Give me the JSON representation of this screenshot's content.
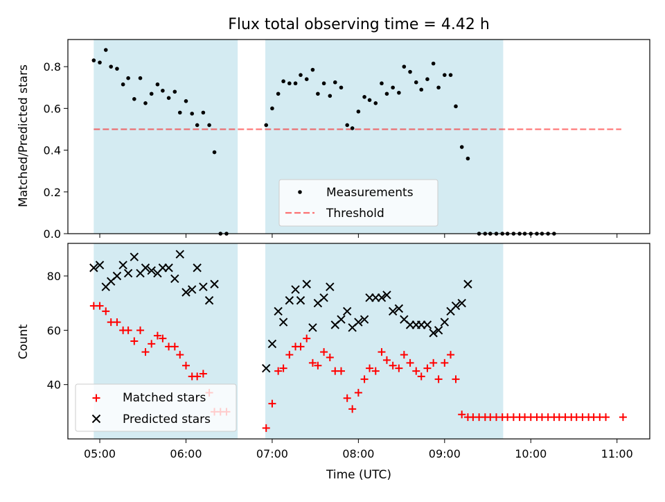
{
  "title": "Flux total observing time = 4.42 h",
  "colors": {
    "shade": "#add8e6",
    "threshold": "#ff0000",
    "measurements": "#000000",
    "matched": "#ff0000",
    "predicted": "#000000"
  },
  "chart_data": [
    {
      "type": "scatter",
      "ylabel": "Matched/Predicted stars",
      "ylim": [
        0,
        0.93
      ],
      "xlim_hours": [
        4.63,
        11.38
      ],
      "yticks": [
        0.0,
        0.2,
        0.4,
        0.6,
        0.8
      ],
      "ytick_labels": [
        "0.0",
        "0.2",
        "0.4",
        "0.6",
        "0.8"
      ],
      "shaded_intervals_hours": [
        [
          4.93,
          6.6
        ],
        [
          6.92,
          9.68
        ]
      ],
      "threshold": {
        "name": "Threshold",
        "value": 0.5,
        "x_range_hours": [
          4.93,
          11.05
        ]
      },
      "legend": {
        "placement": "lower center",
        "entries": [
          "Measurements",
          "Threshold"
        ]
      },
      "series": [
        {
          "name": "Measurements",
          "marker": "dot",
          "points": [
            [
              4.93,
              0.83
            ],
            [
              5.0,
              0.82
            ],
            [
              5.07,
              0.88
            ],
            [
              5.13,
              0.8
            ],
            [
              5.2,
              0.79
            ],
            [
              5.27,
              0.715
            ],
            [
              5.33,
              0.745
            ],
            [
              5.4,
              0.645
            ],
            [
              5.47,
              0.745
            ],
            [
              5.53,
              0.625
            ],
            [
              5.6,
              0.67
            ],
            [
              5.67,
              0.715
            ],
            [
              5.73,
              0.685
            ],
            [
              5.8,
              0.65
            ],
            [
              5.87,
              0.68
            ],
            [
              5.93,
              0.58
            ],
            [
              6.0,
              0.635
            ],
            [
              6.07,
              0.575
            ],
            [
              6.13,
              0.52
            ],
            [
              6.2,
              0.58
            ],
            [
              6.27,
              0.52
            ],
            [
              6.33,
              0.39
            ],
            [
              6.4,
              0.0
            ],
            [
              6.47,
              0.0
            ],
            [
              6.93,
              0.52
            ],
            [
              7.0,
              0.6
            ],
            [
              7.07,
              0.67
            ],
            [
              7.13,
              0.73
            ],
            [
              7.2,
              0.72
            ],
            [
              7.27,
              0.72
            ],
            [
              7.33,
              0.76
            ],
            [
              7.4,
              0.74
            ],
            [
              7.47,
              0.785
            ],
            [
              7.53,
              0.67
            ],
            [
              7.6,
              0.72
            ],
            [
              7.67,
              0.66
            ],
            [
              7.73,
              0.725
            ],
            [
              7.8,
              0.7
            ],
            [
              7.87,
              0.52
            ],
            [
              7.93,
              0.505
            ],
            [
              8.0,
              0.585
            ],
            [
              8.07,
              0.655
            ],
            [
              8.13,
              0.64
            ],
            [
              8.2,
              0.625
            ],
            [
              8.27,
              0.72
            ],
            [
              8.33,
              0.67
            ],
            [
              8.4,
              0.7
            ],
            [
              8.47,
              0.675
            ],
            [
              8.53,
              0.8
            ],
            [
              8.6,
              0.775
            ],
            [
              8.67,
              0.725
            ],
            [
              8.73,
              0.69
            ],
            [
              8.8,
              0.74
            ],
            [
              8.87,
              0.815
            ],
            [
              8.93,
              0.7
            ],
            [
              9.0,
              0.76
            ],
            [
              9.07,
              0.76
            ],
            [
              9.13,
              0.61
            ],
            [
              9.2,
              0.415
            ],
            [
              9.27,
              0.36
            ],
            [
              9.4,
              0.0
            ],
            [
              9.47,
              0.0
            ],
            [
              9.53,
              0.0
            ],
            [
              9.6,
              0.0
            ],
            [
              9.67,
              0.0
            ],
            [
              9.73,
              0.0
            ],
            [
              9.8,
              0.0
            ],
            [
              9.87,
              0.0
            ],
            [
              9.93,
              0.0
            ],
            [
              10.0,
              0.0
            ],
            [
              10.07,
              0.0
            ],
            [
              10.13,
              0.0
            ],
            [
              10.2,
              0.0
            ],
            [
              10.27,
              0.0
            ]
          ]
        }
      ]
    },
    {
      "type": "scatter",
      "xlabel": "Time (UTC)",
      "ylabel": "Count",
      "ylim": [
        20,
        92
      ],
      "xlim_hours": [
        4.63,
        11.38
      ],
      "yticks": [
        40,
        60,
        80
      ],
      "ytick_labels": [
        "40",
        "60",
        "80"
      ],
      "xticks_hours": [
        5,
        6,
        7,
        8,
        9,
        10,
        11
      ],
      "xtick_labels": [
        "05:00",
        "06:00",
        "07:00",
        "08:00",
        "09:00",
        "10:00",
        "11:00"
      ],
      "shaded_intervals_hours": [
        [
          4.93,
          6.6
        ],
        [
          6.92,
          9.68
        ]
      ],
      "legend": {
        "placement": "lower left",
        "entries": [
          "Matched stars",
          "Predicted stars"
        ]
      },
      "series": [
        {
          "name": "Matched stars",
          "marker": "plus",
          "points": [
            [
              4.93,
              69
            ],
            [
              5.0,
              69
            ],
            [
              5.07,
              67
            ],
            [
              5.13,
              63
            ],
            [
              5.2,
              63
            ],
            [
              5.27,
              60
            ],
            [
              5.33,
              60
            ],
            [
              5.4,
              56
            ],
            [
              5.47,
              60
            ],
            [
              5.53,
              52
            ],
            [
              5.6,
              55
            ],
            [
              5.67,
              58
            ],
            [
              5.73,
              57
            ],
            [
              5.8,
              54
            ],
            [
              5.87,
              54
            ],
            [
              5.93,
              51
            ],
            [
              6.0,
              47
            ],
            [
              6.07,
              43
            ],
            [
              6.13,
              43
            ],
            [
              6.2,
              44
            ],
            [
              6.27,
              37
            ],
            [
              6.33,
              30
            ],
            [
              6.4,
              30
            ],
            [
              6.47,
              30
            ],
            [
              6.93,
              24
            ],
            [
              7.0,
              33
            ],
            [
              7.07,
              45
            ],
            [
              7.13,
              46
            ],
            [
              7.2,
              51
            ],
            [
              7.27,
              54
            ],
            [
              7.33,
              54
            ],
            [
              7.4,
              57
            ],
            [
              7.47,
              48
            ],
            [
              7.53,
              47
            ],
            [
              7.6,
              52
            ],
            [
              7.67,
              50
            ],
            [
              7.73,
              45
            ],
            [
              7.8,
              45
            ],
            [
              7.87,
              35
            ],
            [
              7.93,
              31
            ],
            [
              8.0,
              37
            ],
            [
              8.07,
              42
            ],
            [
              8.13,
              46
            ],
            [
              8.2,
              45
            ],
            [
              8.27,
              52
            ],
            [
              8.33,
              49
            ],
            [
              8.4,
              47
            ],
            [
              8.47,
              46
            ],
            [
              8.53,
              51
            ],
            [
              8.6,
              48
            ],
            [
              8.67,
              45
            ],
            [
              8.73,
              43
            ],
            [
              8.8,
              46
            ],
            [
              8.87,
              48
            ],
            [
              8.93,
              42
            ],
            [
              9.0,
              48
            ],
            [
              9.07,
              51
            ],
            [
              9.13,
              42
            ],
            [
              9.2,
              29
            ],
            [
              9.27,
              28
            ],
            [
              9.33,
              28
            ],
            [
              9.4,
              28
            ],
            [
              9.47,
              28
            ],
            [
              9.53,
              28
            ],
            [
              9.6,
              28
            ],
            [
              9.67,
              28
            ],
            [
              9.73,
              28
            ],
            [
              9.8,
              28
            ],
            [
              9.87,
              28
            ],
            [
              9.93,
              28
            ],
            [
              10.0,
              28
            ],
            [
              10.07,
              28
            ],
            [
              10.13,
              28
            ],
            [
              10.2,
              28
            ],
            [
              10.27,
              28
            ],
            [
              10.33,
              28
            ],
            [
              10.4,
              28
            ],
            [
              10.47,
              28
            ],
            [
              10.53,
              28
            ],
            [
              10.6,
              28
            ],
            [
              10.67,
              28
            ],
            [
              10.73,
              28
            ],
            [
              10.8,
              28
            ],
            [
              10.87,
              28
            ],
            [
              11.07,
              28
            ]
          ]
        },
        {
          "name": "Predicted stars",
          "marker": "x",
          "points": [
            [
              4.93,
              83
            ],
            [
              5.0,
              84
            ],
            [
              5.07,
              76
            ],
            [
              5.13,
              78
            ],
            [
              5.2,
              80
            ],
            [
              5.27,
              84
            ],
            [
              5.33,
              81
            ],
            [
              5.4,
              87
            ],
            [
              5.47,
              81
            ],
            [
              5.53,
              83
            ],
            [
              5.6,
              82
            ],
            [
              5.67,
              81
            ],
            [
              5.73,
              83
            ],
            [
              5.8,
              83
            ],
            [
              5.87,
              79
            ],
            [
              5.93,
              88
            ],
            [
              6.0,
              74
            ],
            [
              6.07,
              75
            ],
            [
              6.13,
              83
            ],
            [
              6.2,
              76
            ],
            [
              6.27,
              71
            ],
            [
              6.33,
              77
            ],
            [
              6.93,
              46
            ],
            [
              7.0,
              55
            ],
            [
              7.07,
              67
            ],
            [
              7.13,
              63
            ],
            [
              7.2,
              71
            ],
            [
              7.27,
              75
            ],
            [
              7.33,
              71
            ],
            [
              7.4,
              77
            ],
            [
              7.47,
              61
            ],
            [
              7.53,
              70
            ],
            [
              7.6,
              72
            ],
            [
              7.67,
              76
            ],
            [
              7.73,
              62
            ],
            [
              7.8,
              64
            ],
            [
              7.87,
              67
            ],
            [
              7.93,
              61
            ],
            [
              8.0,
              63
            ],
            [
              8.07,
              64
            ],
            [
              8.13,
              72
            ],
            [
              8.2,
              72
            ],
            [
              8.27,
              72
            ],
            [
              8.33,
              73
            ],
            [
              8.4,
              67
            ],
            [
              8.47,
              68
            ],
            [
              8.53,
              64
            ],
            [
              8.6,
              62
            ],
            [
              8.67,
              62
            ],
            [
              8.73,
              62
            ],
            [
              8.8,
              62
            ],
            [
              8.87,
              59
            ],
            [
              8.93,
              60
            ],
            [
              9.0,
              63
            ],
            [
              9.07,
              67
            ],
            [
              9.13,
              69
            ],
            [
              9.2,
              70
            ],
            [
              9.27,
              77
            ]
          ]
        }
      ]
    }
  ]
}
